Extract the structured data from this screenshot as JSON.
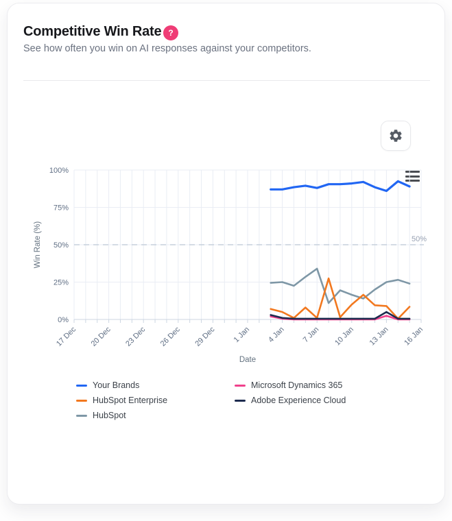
{
  "header": {
    "title": "Competitive Win Rate",
    "help_badge": "?",
    "subtitle": "See how often you win on AI responses against your competitors."
  },
  "icons": {
    "help": "question-mark-icon",
    "settings": "gear-icon",
    "chart_menu": "hamburger-menu-icon"
  },
  "colors": {
    "help_badge": "#ef3d76",
    "grid": "#e9edf4",
    "axis_line": "#ccd6e2",
    "tick_label": "#5f6e84",
    "reference_line": "#c5cfdb"
  },
  "chart_data": {
    "type": "line",
    "title": "",
    "xlabel": "Date",
    "ylabel": "Win Rate (%)",
    "ylim": [
      0,
      100
    ],
    "grid": true,
    "legend_position": "bottom",
    "x_tick_labels": [
      "17 Dec",
      "20 Dec",
      "23 Dec",
      "26 Dec",
      "29 Dec",
      "1 Jan",
      "4 Jan",
      "7 Jan",
      "10 Jan",
      "13 Jan",
      "16 Jan"
    ],
    "y_tick_labels": [
      "0%",
      "25%",
      "50%",
      "75%",
      "100%"
    ],
    "reference_line": {
      "value": 50,
      "label": "50%",
      "style": "dashed"
    },
    "x": [
      "3 Jan",
      "4 Jan",
      "5 Jan",
      "6 Jan",
      "7 Jan",
      "8 Jan",
      "9 Jan",
      "10 Jan",
      "11 Jan",
      "12 Jan",
      "13 Jan",
      "14 Jan",
      "15 Jan"
    ],
    "series": [
      {
        "name": "Your Brands",
        "color": "#2166f3",
        "values": [
          87,
          87,
          88.5,
          89.5,
          88,
          90.5,
          90.5,
          91,
          92,
          88.5,
          86,
          92.5,
          89
        ]
      },
      {
        "name": "HubSpot Enterprise",
        "color": "#f2781f",
        "values": [
          7,
          5,
          1,
          8,
          1,
          27.5,
          1.5,
          10,
          16.5,
          9.5,
          9,
          0.5,
          8.5
        ]
      },
      {
        "name": "HubSpot",
        "color": "#7e97a6",
        "values": [
          24.5,
          25,
          22.5,
          28.5,
          34,
          11,
          19.5,
          16.5,
          14,
          20,
          25,
          26.5,
          24
        ]
      },
      {
        "name": "Microsoft Dynamics 365",
        "color": "#f0418c",
        "values": [
          2,
          0.5,
          0,
          0,
          0,
          0,
          0,
          0,
          0,
          0,
          2.5,
          0,
          0
        ]
      },
      {
        "name": "Adobe Experience Cloud",
        "color": "#1d2b4f",
        "values": [
          3,
          1,
          0.5,
          0.5,
          0.5,
          0.5,
          0.5,
          0.5,
          0.5,
          0.5,
          5,
          0.5,
          0.5
        ]
      }
    ]
  }
}
